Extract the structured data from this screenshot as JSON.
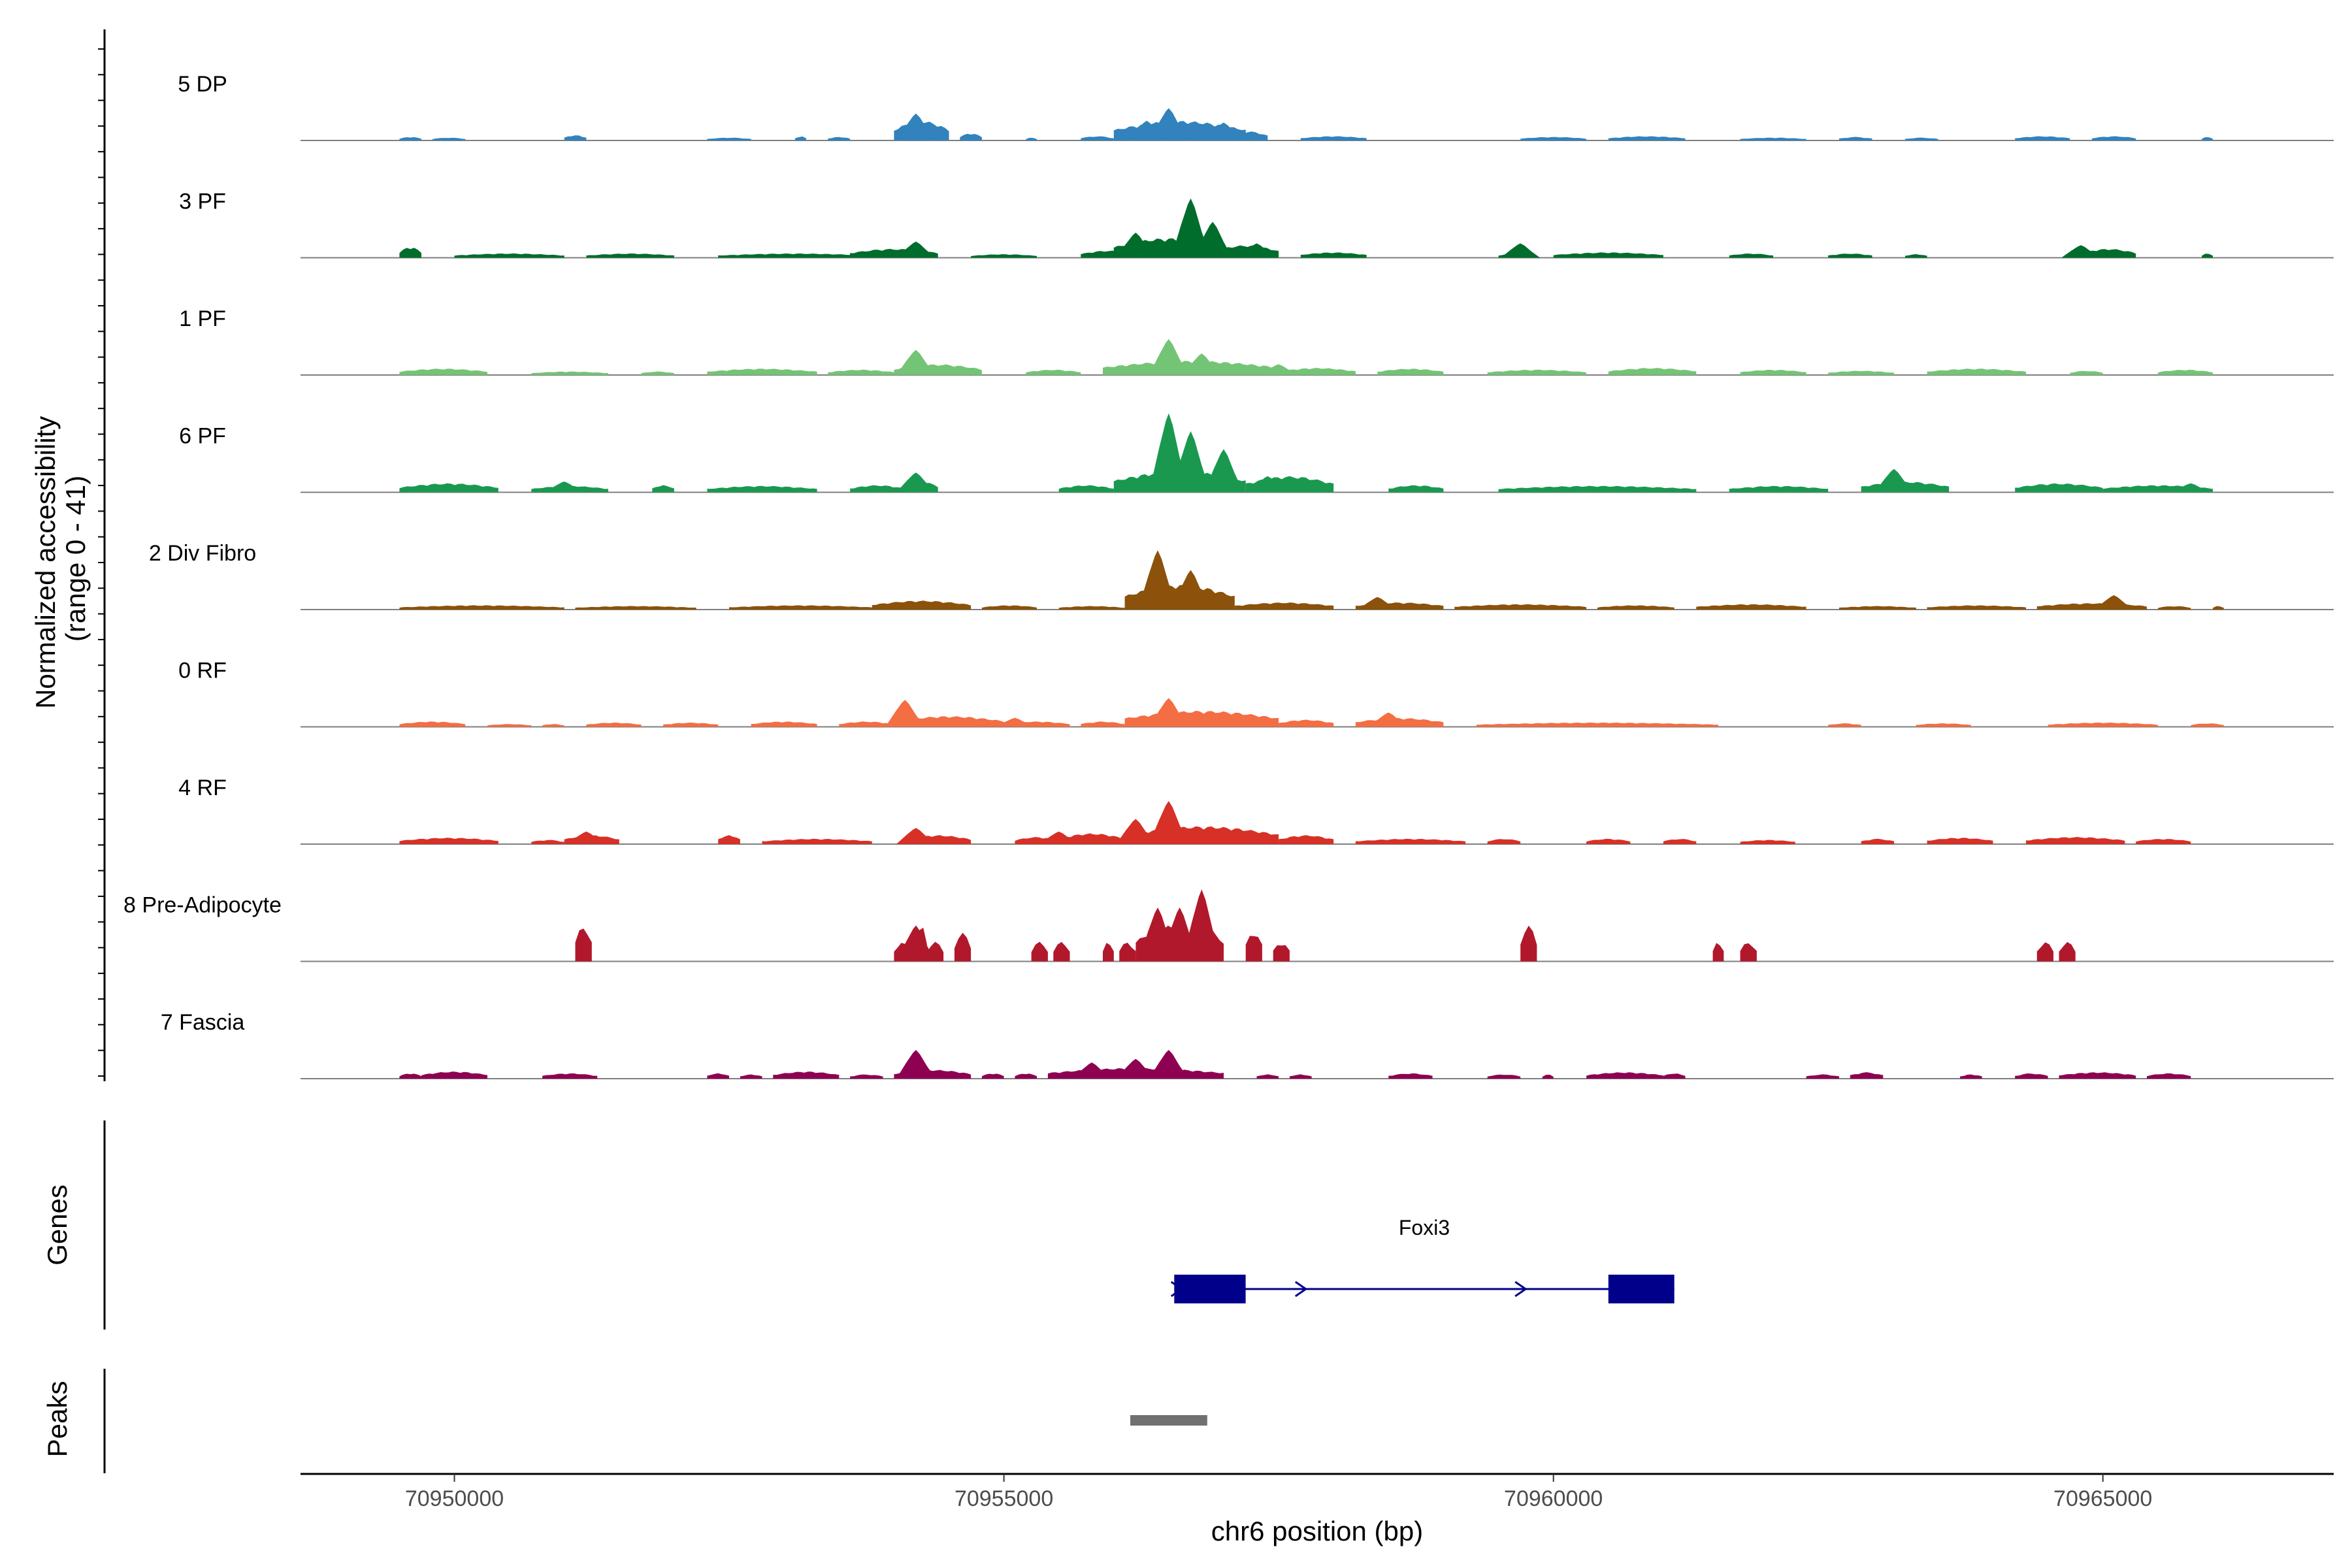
{
  "chart_data": {
    "type": "coverage",
    "region": {
      "chrom": "chr6",
      "start": 70948600,
      "end": 70967100
    },
    "ylabel_line1": "Normalized accessibility",
    "ylabel_line2": "(range 0 - 41)",
    "y_range": [
      0,
      41
    ],
    "tracks": [
      {
        "name": "5 DP",
        "color": "#3182bd",
        "intervals": [
          [
            70949500,
            70949700,
            0.1
          ],
          [
            70949800,
            70950100,
            0.08
          ],
          [
            70951000,
            70951200,
            0.15
          ],
          [
            70952300,
            70952700,
            0.08
          ],
          [
            70953100,
            70953200,
            0.12
          ],
          [
            70953400,
            70953600,
            0.1
          ],
          [
            70954000,
            70954500,
            0.55
          ],
          [
            70954600,
            70954800,
            0.2
          ],
          [
            70955200,
            70955300,
            0.08
          ],
          [
            70955700,
            70956000,
            0.12
          ],
          [
            70956000,
            70957200,
            0.55
          ],
          [
            70957100,
            70957400,
            0.25
          ],
          [
            70957700,
            70958300,
            0.12
          ],
          [
            70959700,
            70960300,
            0.1
          ],
          [
            70960500,
            70961200,
            0.12
          ],
          [
            70961700,
            70962300,
            0.08
          ],
          [
            70962600,
            70962900,
            0.1
          ],
          [
            70963200,
            70963500,
            0.08
          ],
          [
            70964200,
            70964700,
            0.12
          ],
          [
            70964900,
            70965300,
            0.12
          ],
          [
            70965900,
            70966000,
            0.1
          ]
        ],
        "peaks": [
          [
            70954200,
            0.75
          ],
          [
            70956500,
            0.9
          ],
          [
            70957000,
            0.5
          ],
          [
            70956300,
            0.55
          ]
        ]
      },
      {
        "name": "3 PF",
        "color": "#006d2c",
        "intervals": [
          [
            70949500,
            70949700,
            0.3
          ],
          [
            70950000,
            70951000,
            0.12
          ],
          [
            70951200,
            70952000,
            0.12
          ],
          [
            70952400,
            70953800,
            0.12
          ],
          [
            70953600,
            70954400,
            0.25
          ],
          [
            70954700,
            70955300,
            0.1
          ],
          [
            70955700,
            70956200,
            0.2
          ],
          [
            70956000,
            70957000,
            0.55
          ],
          [
            70956900,
            70957500,
            0.35
          ],
          [
            70957700,
            70958300,
            0.15
          ],
          [
            70959500,
            70959800,
            0.12
          ],
          [
            70960000,
            70961000,
            0.15
          ],
          [
            70961600,
            70962000,
            0.12
          ],
          [
            70962500,
            70962900,
            0.12
          ],
          [
            70963200,
            70963400,
            0.1
          ],
          [
            70964800,
            70965300,
            0.25
          ],
          [
            70965900,
            70966000,
            0.12
          ]
        ],
        "peaks": [
          [
            70956700,
            1.65
          ],
          [
            70956900,
            1.0
          ],
          [
            70956200,
            0.7
          ],
          [
            70954200,
            0.45
          ],
          [
            70959700,
            0.4
          ],
          [
            70957300,
            0.4
          ],
          [
            70964800,
            0.35
          ]
        ]
      },
      {
        "name": "1 PF",
        "color": "#74c476",
        "intervals": [
          [
            70949500,
            70950300,
            0.18
          ],
          [
            70950700,
            70951400,
            0.1
          ],
          [
            70951700,
            70952000,
            0.1
          ],
          [
            70952300,
            70953300,
            0.18
          ],
          [
            70953400,
            70954000,
            0.15
          ],
          [
            70954000,
            70954800,
            0.3
          ],
          [
            70955200,
            70955700,
            0.15
          ],
          [
            70955900,
            70957500,
            0.4
          ],
          [
            70957500,
            70958200,
            0.2
          ],
          [
            70958400,
            70959000,
            0.18
          ],
          [
            70959400,
            70960300,
            0.15
          ],
          [
            70960500,
            70961300,
            0.2
          ],
          [
            70961700,
            70962300,
            0.15
          ],
          [
            70962500,
            70963100,
            0.12
          ],
          [
            70963400,
            70964300,
            0.18
          ],
          [
            70964700,
            70965000,
            0.12
          ],
          [
            70965500,
            70966000,
            0.15
          ]
        ],
        "peaks": [
          [
            70954200,
            0.7
          ],
          [
            70956500,
            1.0
          ],
          [
            70956800,
            0.6
          ],
          [
            70957500,
            0.3
          ]
        ]
      },
      {
        "name": "6 PF",
        "color": "#1a9850",
        "intervals": [
          [
            70949500,
            70950400,
            0.25
          ],
          [
            70950700,
            70951400,
            0.18
          ],
          [
            70951800,
            70952000,
            0.2
          ],
          [
            70952300,
            70953300,
            0.18
          ],
          [
            70953600,
            70954100,
            0.2
          ],
          [
            70954100,
            70954400,
            0.3
          ],
          [
            70955500,
            70956000,
            0.2
          ],
          [
            70956000,
            70957200,
            0.6
          ],
          [
            70957200,
            70958000,
            0.45
          ],
          [
            70958500,
            70959000,
            0.2
          ],
          [
            70959500,
            70961300,
            0.18
          ],
          [
            70961600,
            70962500,
            0.18
          ],
          [
            70962800,
            70963600,
            0.3
          ],
          [
            70964200,
            70965000,
            0.25
          ],
          [
            70965000,
            70966000,
            0.2
          ]
        ],
        "peaks": [
          [
            70956500,
            2.2
          ],
          [
            70956700,
            1.7
          ],
          [
            70957000,
            1.2
          ],
          [
            70957400,
            0.45
          ],
          [
            70963100,
            0.65
          ],
          [
            70954200,
            0.55
          ],
          [
            70951000,
            0.3
          ],
          [
            70965800,
            0.25
          ]
        ]
      },
      {
        "name": "2 Div Fibro",
        "color": "#8c510a",
        "intervals": [
          [
            70949500,
            70951000,
            0.12
          ],
          [
            70951100,
            70952200,
            0.1
          ],
          [
            70952500,
            70953800,
            0.12
          ],
          [
            70953800,
            70954700,
            0.25
          ],
          [
            70954800,
            70955300,
            0.12
          ],
          [
            70955500,
            70956100,
            0.1
          ],
          [
            70956100,
            70957100,
            0.7
          ],
          [
            70957100,
            70958000,
            0.2
          ],
          [
            70958200,
            70959000,
            0.2
          ],
          [
            70959100,
            70960300,
            0.15
          ],
          [
            70960400,
            70961100,
            0.12
          ],
          [
            70961300,
            70962300,
            0.15
          ],
          [
            70962600,
            70963300,
            0.1
          ],
          [
            70963400,
            70964300,
            0.12
          ],
          [
            70964400,
            70965400,
            0.18
          ],
          [
            70965500,
            70965800,
            0.1
          ],
          [
            70966000,
            70966100,
            0.1
          ]
        ],
        "peaks": [
          [
            70956400,
            1.65
          ],
          [
            70956700,
            1.1
          ],
          [
            70958400,
            0.35
          ],
          [
            70965100,
            0.4
          ]
        ]
      },
      {
        "name": "0 RF",
        "color": "#f46d43",
        "intervals": [
          [
            70949500,
            70950100,
            0.15
          ],
          [
            70950300,
            70950700,
            0.08
          ],
          [
            70950800,
            70951000,
            0.08
          ],
          [
            70951200,
            70951700,
            0.12
          ],
          [
            70951900,
            70952400,
            0.12
          ],
          [
            70952700,
            70953300,
            0.15
          ],
          [
            70953500,
            70954000,
            0.15
          ],
          [
            70954000,
            70955000,
            0.3
          ],
          [
            70955000,
            70955600,
            0.15
          ],
          [
            70955700,
            70956100,
            0.15
          ],
          [
            70956100,
            70957500,
            0.45
          ],
          [
            70957500,
            70958000,
            0.2
          ],
          [
            70958200,
            70959000,
            0.25
          ],
          [
            70959300,
            70961500,
            0.12
          ],
          [
            70962500,
            70962800,
            0.1
          ],
          [
            70963300,
            70963800,
            0.1
          ],
          [
            70964500,
            70965500,
            0.12
          ],
          [
            70965800,
            70966100,
            0.1
          ]
        ],
        "peaks": [
          [
            70954100,
            0.75
          ],
          [
            70956500,
            0.8
          ],
          [
            70958500,
            0.4
          ],
          [
            70955100,
            0.25
          ]
        ]
      },
      {
        "name": "4 RF",
        "color": "#d73027",
        "intervals": [
          [
            70949500,
            70950400,
            0.18
          ],
          [
            70950700,
            70951000,
            0.12
          ],
          [
            70951000,
            70951500,
            0.25
          ],
          [
            70952400,
            70952600,
            0.25
          ],
          [
            70952800,
            70953800,
            0.15
          ],
          [
            70954100,
            70954700,
            0.25
          ],
          [
            70955100,
            70955500,
            0.2
          ],
          [
            70955500,
            70956100,
            0.3
          ],
          [
            70956100,
            70957500,
            0.5
          ],
          [
            70957500,
            70958000,
            0.25
          ],
          [
            70958200,
            70959200,
            0.15
          ],
          [
            70959400,
            70959700,
            0.15
          ],
          [
            70960300,
            70960700,
            0.15
          ],
          [
            70961000,
            70961300,
            0.15
          ],
          [
            70961700,
            70962200,
            0.12
          ],
          [
            70962800,
            70963100,
            0.15
          ],
          [
            70963400,
            70964000,
            0.18
          ],
          [
            70964300,
            70965200,
            0.2
          ],
          [
            70965300,
            70965800,
            0.15
          ]
        ],
        "peaks": [
          [
            70956500,
            1.2
          ],
          [
            70956200,
            0.7
          ],
          [
            70954200,
            0.45
          ],
          [
            70955500,
            0.35
          ],
          [
            70951200,
            0.35
          ]
        ]
      },
      {
        "name": "8 Pre-Adipocyte",
        "color": "#b2182b",
        "intervals": [
          [
            70951100,
            70951250,
            1.0
          ],
          [
            70954000,
            70954200,
            0.55
          ],
          [
            70954200,
            70954300,
            1.0
          ],
          [
            70954300,
            70954450,
            0.55
          ],
          [
            70954550,
            70954700,
            0.8
          ],
          [
            70955250,
            70955400,
            0.55
          ],
          [
            70955450,
            70955600,
            0.55
          ],
          [
            70955900,
            70956000,
            0.55
          ],
          [
            70956050,
            70956200,
            0.55
          ],
          [
            70956200,
            70956750,
            1.0
          ],
          [
            70956750,
            70957000,
            0.9
          ],
          [
            70957200,
            70957350,
            0.85
          ],
          [
            70957450,
            70957600,
            0.55
          ],
          [
            70959700,
            70959850,
            1.0
          ],
          [
            70961450,
            70961550,
            0.55
          ],
          [
            70961700,
            70961850,
            0.55
          ],
          [
            70964400,
            70964550,
            0.55
          ],
          [
            70964600,
            70964750,
            0.55
          ]
        ],
        "peaks": [
          [
            70956400,
            1.5
          ],
          [
            70956600,
            1.5
          ],
          [
            70956800,
            2.0
          ],
          [
            70954200,
            1.0
          ]
        ]
      },
      {
        "name": "7 Fascia",
        "color": "#8e0152",
        "intervals": [
          [
            70949500,
            70949700,
            0.15
          ],
          [
            70949700,
            70950300,
            0.2
          ],
          [
            70950800,
            70951300,
            0.15
          ],
          [
            70952300,
            70952500,
            0.15
          ],
          [
            70952600,
            70952800,
            0.12
          ],
          [
            70952900,
            70953500,
            0.2
          ],
          [
            70953600,
            70953900,
            0.12
          ],
          [
            70954000,
            70954700,
            0.25
          ],
          [
            70954800,
            70955000,
            0.15
          ],
          [
            70955100,
            70955300,
            0.15
          ],
          [
            70955400,
            70957000,
            0.3
          ],
          [
            70957300,
            70957500,
            0.12
          ],
          [
            70957600,
            70957800,
            0.12
          ],
          [
            70958500,
            70958900,
            0.15
          ],
          [
            70959400,
            70959700,
            0.12
          ],
          [
            70959900,
            70960000,
            0.12
          ],
          [
            70960300,
            70961000,
            0.18
          ],
          [
            70961000,
            70961200,
            0.15
          ],
          [
            70962300,
            70962600,
            0.12
          ],
          [
            70962700,
            70963000,
            0.18
          ],
          [
            70963700,
            70963900,
            0.12
          ],
          [
            70964200,
            70964500,
            0.15
          ],
          [
            70964600,
            70965300,
            0.18
          ],
          [
            70965400,
            70965800,
            0.15
          ]
        ],
        "peaks": [
          [
            70954200,
            0.8
          ],
          [
            70956500,
            0.8
          ],
          [
            70956200,
            0.55
          ],
          [
            70955800,
            0.45
          ]
        ]
      }
    ],
    "genes_label": "Genes",
    "gene": {
      "name": "Foxi3",
      "start": 70956550,
      "end": 70961100,
      "strand": "+",
      "exons": [
        [
          70956550,
          70957200
        ],
        [
          70960500,
          70961100
        ]
      ],
      "color": "#00008b"
    },
    "peaks_label": "Peaks",
    "peak_regions": [
      [
        70956150,
        70956850
      ]
    ],
    "peak_color": "#707070",
    "xlabel": "chr6 position (bp)",
    "xticks": [
      70950000,
      70955000,
      70960000,
      70965000
    ],
    "xtick_labels": [
      "70950000",
      "70955000",
      "70960000",
      "70965000"
    ]
  }
}
